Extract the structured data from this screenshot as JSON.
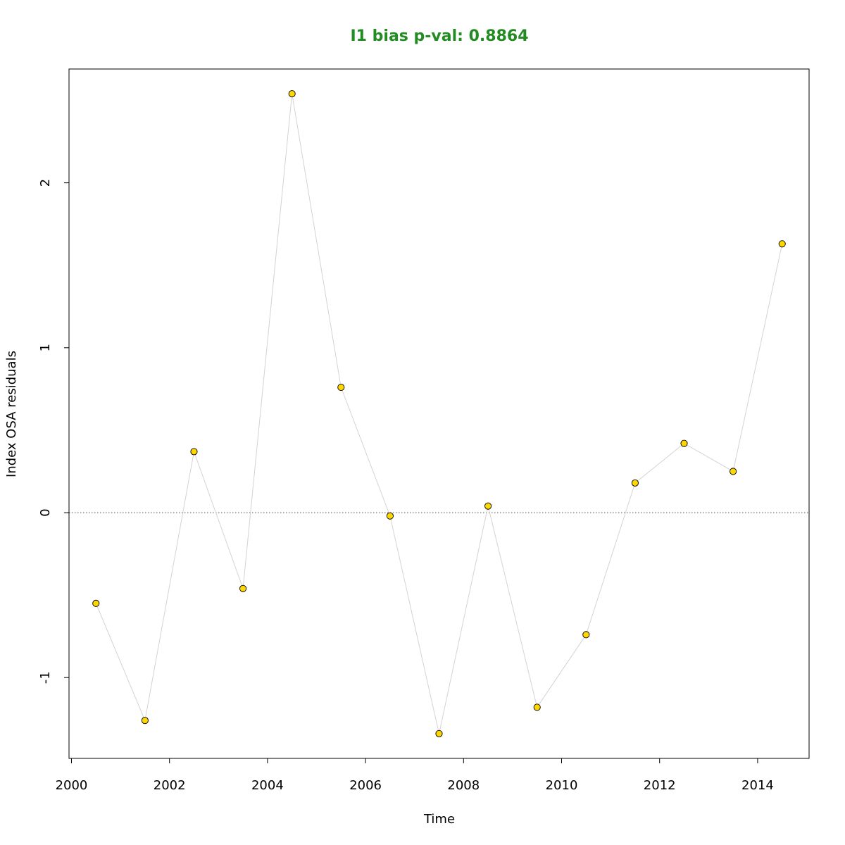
{
  "chart_data": {
    "type": "scatter",
    "title": "I1 bias p-val: 0.8864",
    "title_color": "#228B22",
    "xlabel": "Time",
    "ylabel": "Index OSA residuals",
    "xlim": [
      1999.95,
      2015.05
    ],
    "ylim": [
      -1.49,
      2.69
    ],
    "x_ticks": [
      2000,
      2002,
      2004,
      2006,
      2008,
      2010,
      2012,
      2014
    ],
    "x_tick_labels": [
      "2000",
      "2002",
      "2004",
      "2006",
      "2008",
      "2010",
      "2012",
      "2014"
    ],
    "y_ticks": [
      -1,
      0,
      1,
      2
    ],
    "y_tick_labels": [
      "-1",
      "0",
      "1",
      "2"
    ],
    "reference_line": 0,
    "grid": false,
    "line_color": "#d3d3d3",
    "point_color": "#FFD700",
    "point_edge_color": "#000000",
    "series": [
      {
        "x": [
          2000.5,
          2001.5,
          2002.5,
          2003.5,
          2004.5,
          2005.5,
          2006.5,
          2007.5,
          2008.5,
          2009.5,
          2010.5,
          2011.5,
          2012.5,
          2013.5,
          2014.5
        ],
        "values": [
          -0.55,
          -1.26,
          0.37,
          -0.46,
          2.54,
          0.76,
          -0.02,
          -1.34,
          0.04,
          -1.18,
          -0.74,
          0.18,
          0.42,
          0.25,
          1.63
        ]
      }
    ]
  }
}
